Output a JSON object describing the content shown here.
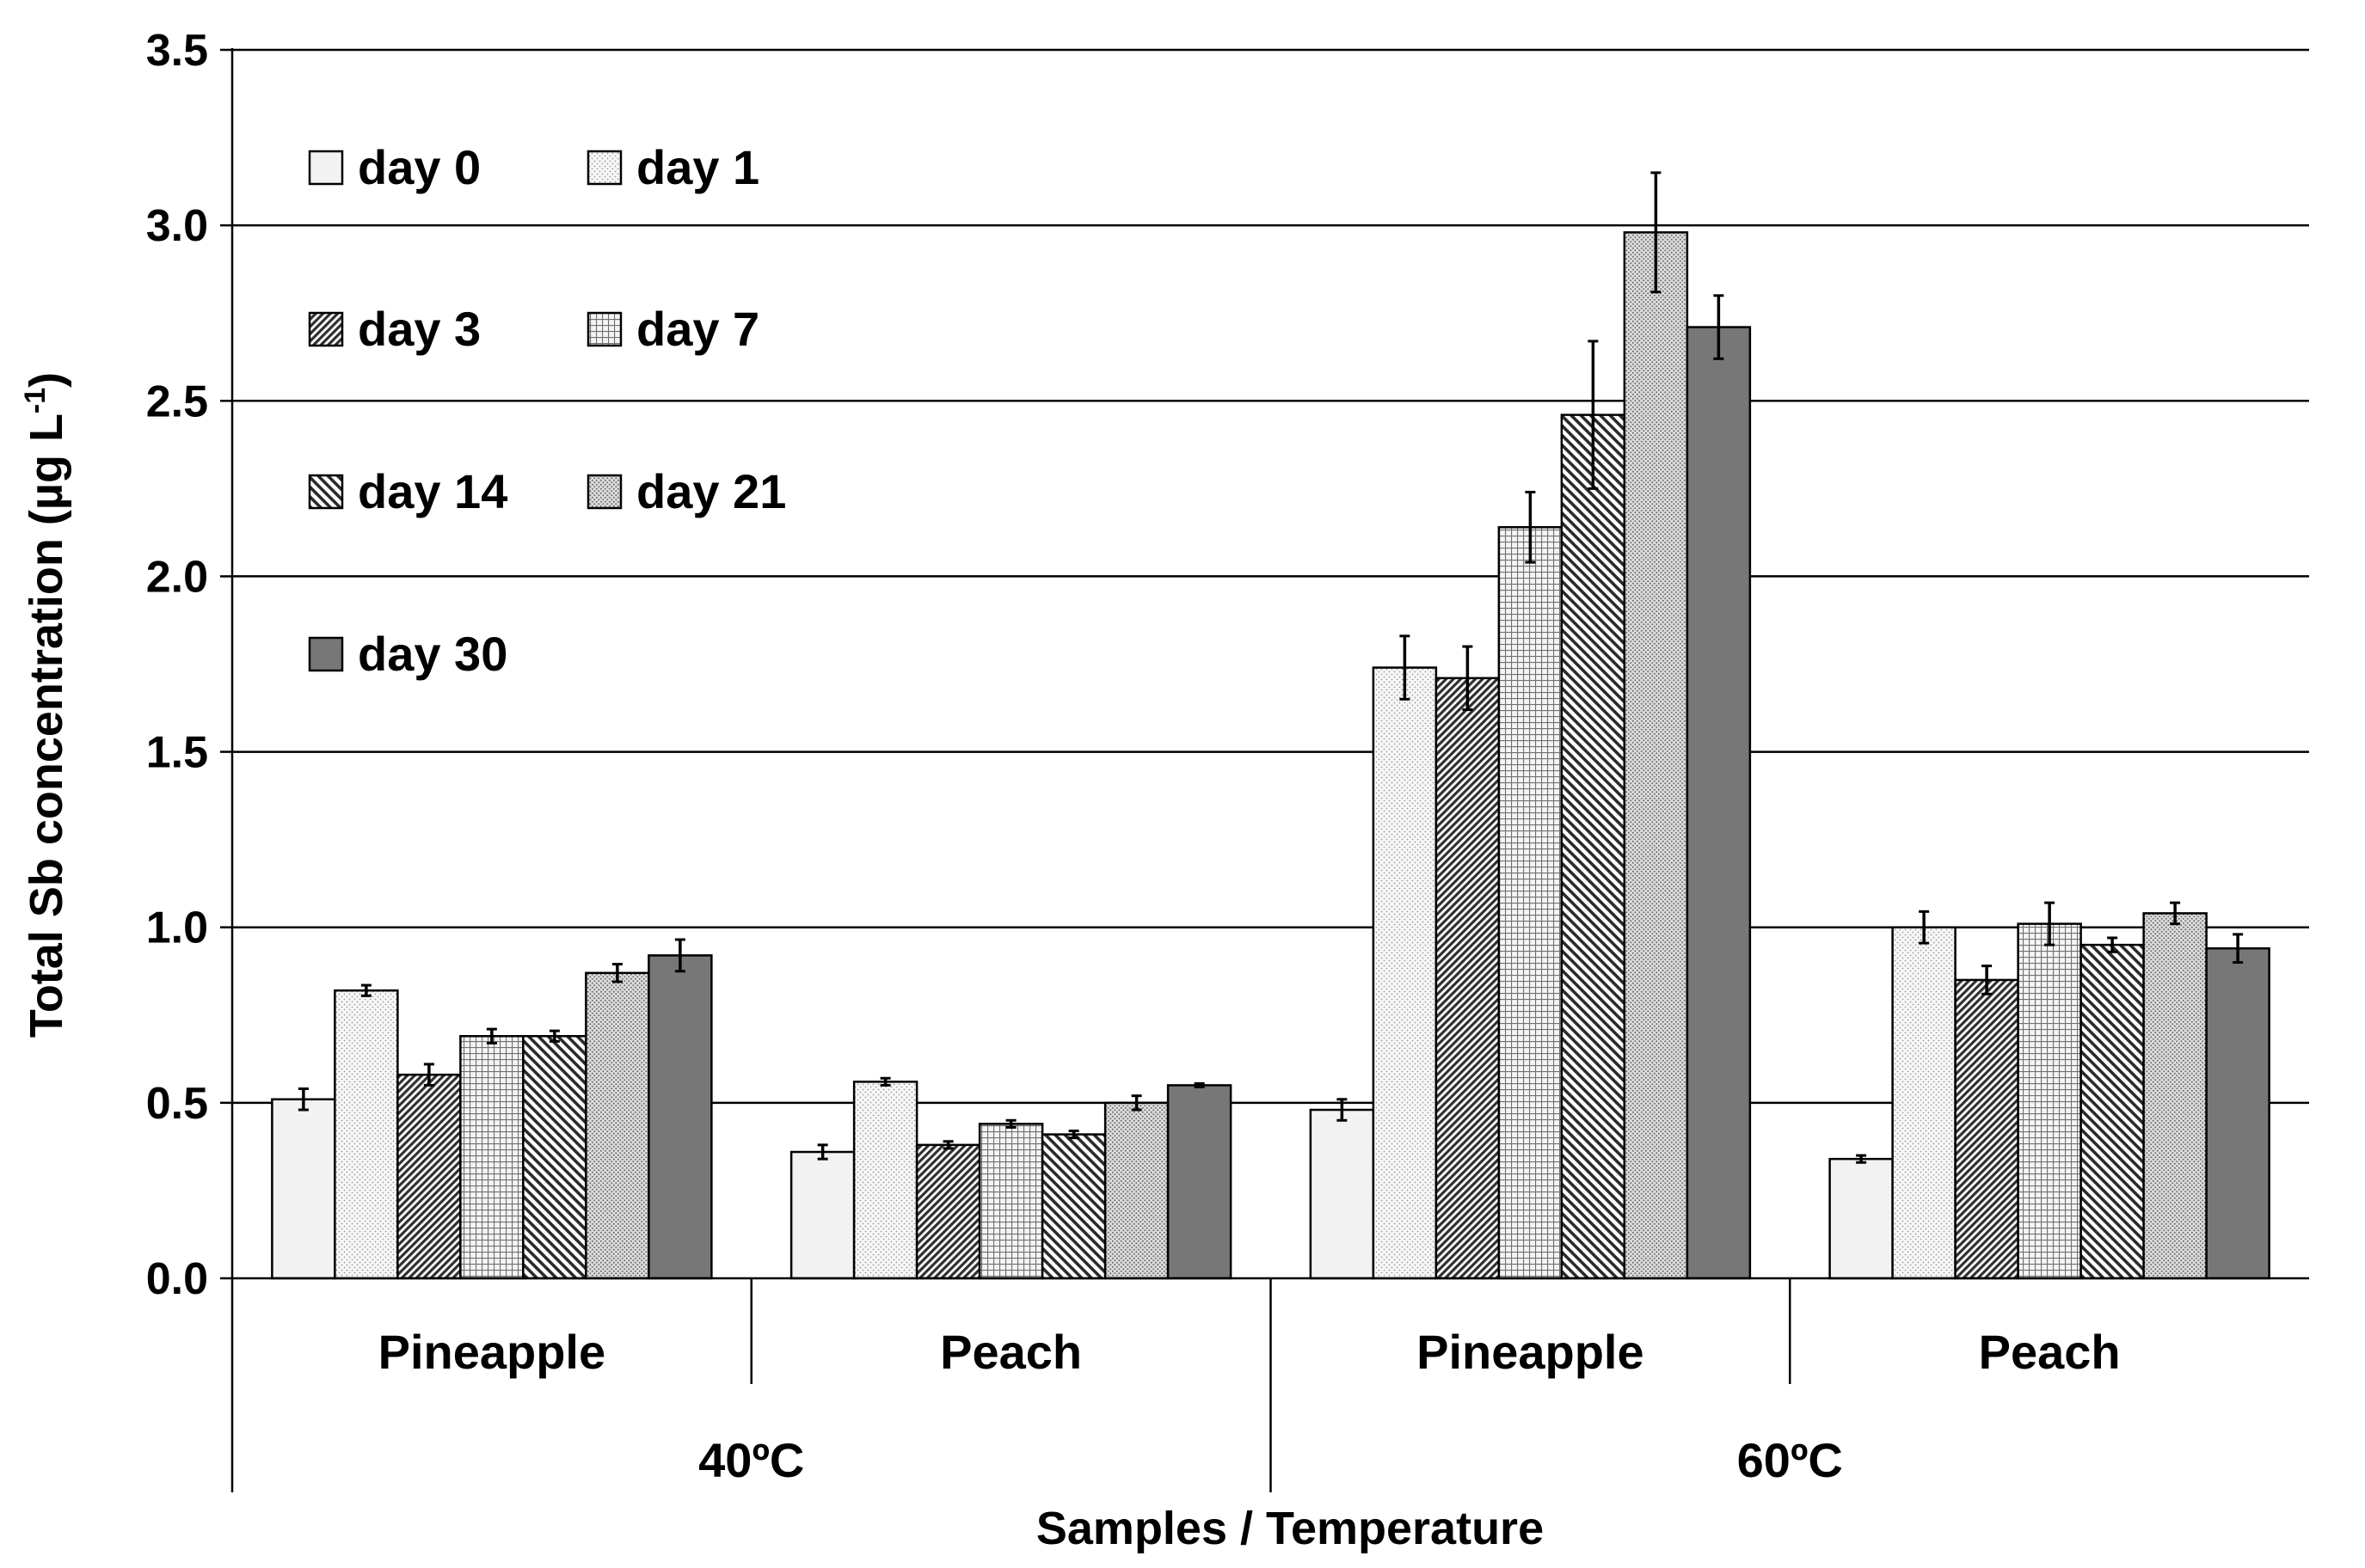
{
  "chart_data": {
    "type": "bar",
    "title": "",
    "xlabel": "Samples / Temperature",
    "ylabel": "Total Sb concentration (µg L",
    "ylabel_superscript": "-1",
    "ylabel_suffix": ")",
    "ylim": [
      0,
      3.5
    ],
    "yticks": [
      "0.0",
      "0.5",
      "1.0",
      "1.5",
      "2.0",
      "2.5",
      "3.0",
      "3.5"
    ],
    "grid": true,
    "legend_position": "top-left",
    "categories": [
      "Pineapple",
      "Peach",
      "Pineapple",
      "Peach"
    ],
    "groups": [
      {
        "label": "40ºC",
        "span": 2
      },
      {
        "label": "60ºC",
        "span": 2
      }
    ],
    "series": [
      {
        "name": "day 0",
        "pattern": "plain-light",
        "values": [
          0.51,
          0.36,
          0.48,
          0.34
        ],
        "errors": [
          0.03,
          0.02,
          0.03,
          0.01
        ]
      },
      {
        "name": "day 1",
        "pattern": "dots-light",
        "values": [
          0.82,
          0.56,
          1.74,
          1.0
        ],
        "errors": [
          0.015,
          0.01,
          0.09,
          0.045
        ]
      },
      {
        "name": "day 3",
        "pattern": "diag-dense",
        "values": [
          0.58,
          0.38,
          1.71,
          0.85
        ],
        "errors": [
          0.03,
          0.01,
          0.09,
          0.04
        ]
      },
      {
        "name": "day 7",
        "pattern": "grid-fine",
        "values": [
          0.69,
          0.44,
          2.14,
          1.01
        ],
        "errors": [
          0.02,
          0.01,
          0.1,
          0.06
        ]
      },
      {
        "name": "day 14",
        "pattern": "diag-wide",
        "values": [
          0.69,
          0.41,
          2.46,
          0.95
        ],
        "errors": [
          0.015,
          0.01,
          0.21,
          0.02
        ]
      },
      {
        "name": "day 21",
        "pattern": "dots-dense",
        "values": [
          0.87,
          0.5,
          2.98,
          1.04
        ],
        "errors": [
          0.025,
          0.02,
          0.17,
          0.03
        ]
      },
      {
        "name": "day 30",
        "pattern": "solid-dark",
        "values": [
          0.92,
          0.55,
          2.71,
          0.94
        ],
        "errors": [
          0.045,
          0.005,
          0.09,
          0.04
        ]
      }
    ],
    "colors": {
      "plain-light": "#f2f2f2",
      "solid-dark": "#777777",
      "grid": "#000000",
      "axis": "#000000"
    }
  }
}
